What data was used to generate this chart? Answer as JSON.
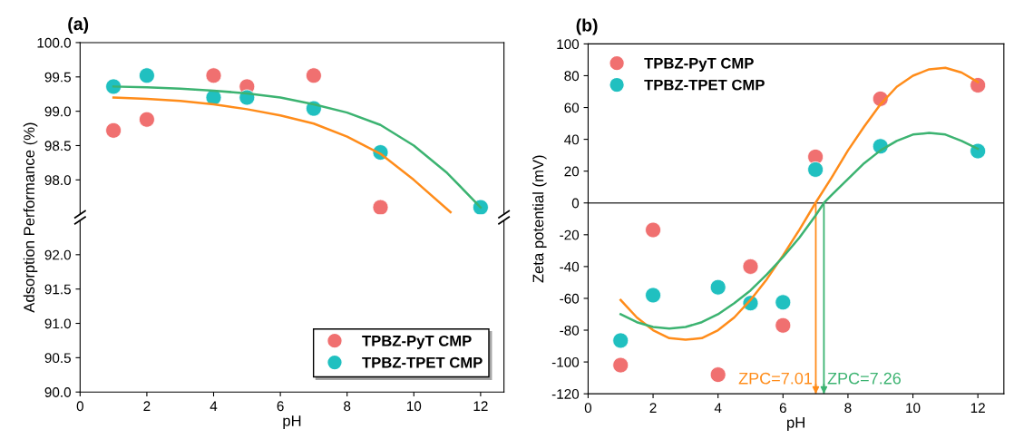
{
  "chart_data": [
    {
      "type": "scatter",
      "title": "(a)",
      "ylabel": "Adsorption Performance (%)",
      "xlim": [
        0,
        12.7
      ],
      "xticks": [
        0,
        2,
        4,
        6,
        8,
        10,
        12
      ],
      "ylim": [
        97.5,
        100
      ],
      "yticks": [
        {
          "value": 98,
          "label": "98.0"
        },
        {
          "value": 98.5,
          "label": "98.5"
        },
        {
          "value": 99,
          "label": "99.0"
        },
        {
          "value": 99.5,
          "label": "99.5"
        },
        {
          "value": 100,
          "label": "100.0"
        }
      ],
      "tick_labels": "y",
      "legend": "bottom right",
      "series": [
        {
          "type": "line",
          "color": "#ff8c1a",
          "x": [
            1,
            2,
            3,
            4,
            5,
            6,
            7,
            8,
            9,
            10,
            11.1
          ],
          "values": [
            99.2,
            99.18,
            99.15,
            99.1,
            99.03,
            98.94,
            98.82,
            98.63,
            98.38,
            98.0,
            97.53
          ]
        },
        {
          "type": "line",
          "color": "#3cb371",
          "x": [
            1,
            2,
            3,
            4,
            5,
            6,
            7,
            8,
            9,
            10,
            11,
            12
          ],
          "values": [
            99.36,
            99.35,
            99.33,
            99.3,
            99.26,
            99.2,
            99.1,
            98.98,
            98.8,
            98.5,
            98.1,
            97.6
          ]
        },
        {
          "name": "TPBZ-PyT CMP",
          "marker": "circle",
          "color": "#f07070",
          "x": [
            1,
            2,
            4,
            5,
            7,
            9
          ],
          "values": [
            98.72,
            98.88,
            99.52,
            99.36,
            99.52,
            97.6
          ]
        },
        {
          "name": "TPBZ-TPET CMP",
          "marker": "circle",
          "color": "#20c0c0",
          "x": [
            1,
            2,
            4,
            5,
            7,
            9,
            12
          ],
          "values": [
            99.36,
            99.52,
            99.2,
            99.2,
            99.04,
            98.4,
            97.6
          ]
        }
      ]
    },
    {
      "type": "scatter",
      "xlabel": "pH",
      "xlim": [
        0,
        12.7
      ],
      "xticks": [
        0,
        2,
        4,
        6,
        8,
        10,
        12
      ],
      "ylim": [
        90,
        92.5
      ],
      "yticks": [
        {
          "value": 90,
          "label": "90.0"
        },
        {
          "value": 90.5,
          "label": "90.5"
        },
        {
          "value": 91,
          "label": "91.0"
        },
        {
          "value": 91.5,
          "label": "91.5"
        },
        {
          "value": 92,
          "label": "92.0"
        }
      ]
    },
    {
      "type": "scatter",
      "title": "(b)",
      "xlabel": "pH",
      "ylabel": "Zeta potential (mV)",
      "xlim": [
        0,
        12.8
      ],
      "xticks": [
        0,
        2,
        4,
        6,
        8,
        10,
        12
      ],
      "ylim": [
        -120,
        100
      ],
      "yticks": [
        -120,
        -100,
        -80,
        -60,
        -40,
        -20,
        0,
        20,
        40,
        60,
        80,
        100
      ],
      "legend": "top left",
      "ref_lines": [
        {
          "axis": "y",
          "value": 0,
          "color": "#404040"
        },
        {
          "axis": "x",
          "value": 7.01,
          "label": "ZPC=7.01",
          "color": "#ff8c1a"
        },
        {
          "axis": "x",
          "value": 7.26,
          "label": "ZPC=7.26",
          "color": "#3cb371"
        }
      ],
      "series": [
        {
          "type": "line",
          "color": "#ff8c1a",
          "x": [
            1,
            1.5,
            2,
            2.5,
            3,
            3.5,
            4,
            4.5,
            5,
            5.5,
            6,
            6.5,
            7,
            7.5,
            8,
            8.5,
            9,
            9.5,
            10,
            10.5,
            11,
            11.5,
            12
          ],
          "values": [
            -61,
            -72,
            -80,
            -85,
            -86,
            -85,
            -80,
            -72,
            -61,
            -48,
            -33,
            -17,
            0,
            16,
            33,
            48,
            62,
            73,
            80,
            84,
            85,
            82,
            76
          ]
        },
        {
          "type": "line",
          "color": "#3cb371",
          "x": [
            1,
            1.5,
            2,
            2.5,
            3,
            3.5,
            4,
            4.5,
            5,
            5.5,
            6,
            6.5,
            7,
            7.26,
            7.5,
            8,
            8.5,
            9,
            9.5,
            10,
            10.5,
            11,
            11.5,
            12
          ],
          "values": [
            -70,
            -75,
            -78,
            -79,
            -78,
            -75,
            -70,
            -63,
            -55,
            -45,
            -34,
            -22,
            -8,
            0,
            5,
            15,
            25,
            33,
            39,
            43,
            44,
            43,
            39,
            34
          ]
        },
        {
          "name": "TPBZ-PyT CMP",
          "marker": "circle",
          "color": "#f07070",
          "x": [
            1,
            2,
            4,
            5,
            6,
            7,
            9,
            12
          ],
          "values": [
            -102,
            -17,
            -108,
            -40,
            -77,
            29,
            65.5,
            74
          ]
        },
        {
          "name": "TPBZ-TPET CMP",
          "marker": "circle",
          "color": "#20c0c0",
          "x": [
            1,
            2,
            4,
            5,
            6,
            7,
            9,
            12
          ],
          "values": [
            -86.5,
            -58,
            -53,
            -63,
            -62.5,
            21,
            35.6,
            32.6
          ]
        }
      ]
    }
  ]
}
